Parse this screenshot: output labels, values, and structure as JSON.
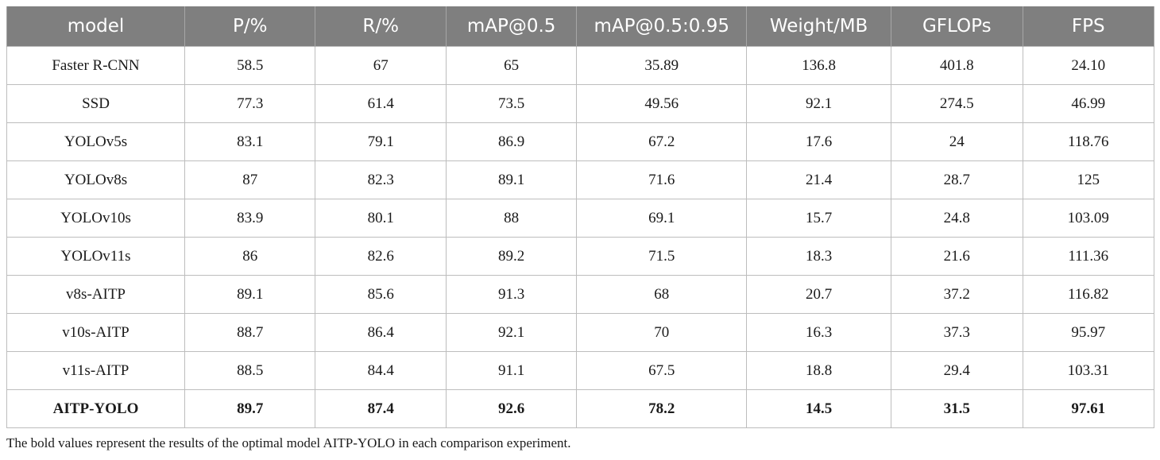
{
  "table": {
    "headers": [
      "model",
      "P/%",
      "R/%",
      "mAP@0.5",
      "mAP@0.5:0.95",
      "Weight/MB",
      "GFLOPs",
      "FPS"
    ],
    "rows": [
      [
        "Faster R-CNN",
        "58.5",
        "67",
        "65",
        "35.89",
        "136.8",
        "401.8",
        "24.10"
      ],
      [
        "SSD",
        "77.3",
        "61.4",
        "73.5",
        "49.56",
        "92.1",
        "274.5",
        "46.99"
      ],
      [
        "YOLOv5s",
        "83.1",
        "79.1",
        "86.9",
        "67.2",
        "17.6",
        "24",
        "118.76"
      ],
      [
        "YOLOv8s",
        "87",
        "82.3",
        "89.1",
        "71.6",
        "21.4",
        "28.7",
        "125"
      ],
      [
        "YOLOv10s",
        "83.9",
        "80.1",
        "88",
        "69.1",
        "15.7",
        "24.8",
        "103.09"
      ],
      [
        "YOLOv11s",
        "86",
        "82.6",
        "89.2",
        "71.5",
        "18.3",
        "21.6",
        "111.36"
      ],
      [
        "v8s-AITP",
        "89.1",
        "85.6",
        "91.3",
        "68",
        "20.7",
        "37.2",
        "116.82"
      ],
      [
        "v10s-AITP",
        "88.7",
        "86.4",
        "92.1",
        "70",
        "16.3",
        "37.3",
        "95.97"
      ],
      [
        "v11s-AITP",
        "88.5",
        "84.4",
        "91.1",
        "67.5",
        "18.8",
        "29.4",
        "103.31"
      ],
      [
        "AITP-YOLO",
        "89.7",
        "87.4",
        "92.6",
        "78.2",
        "14.5",
        "31.5",
        "97.61"
      ]
    ]
  },
  "footnote": "The bold values represent the results of the optimal model AITP-YOLO in each comparison experiment."
}
